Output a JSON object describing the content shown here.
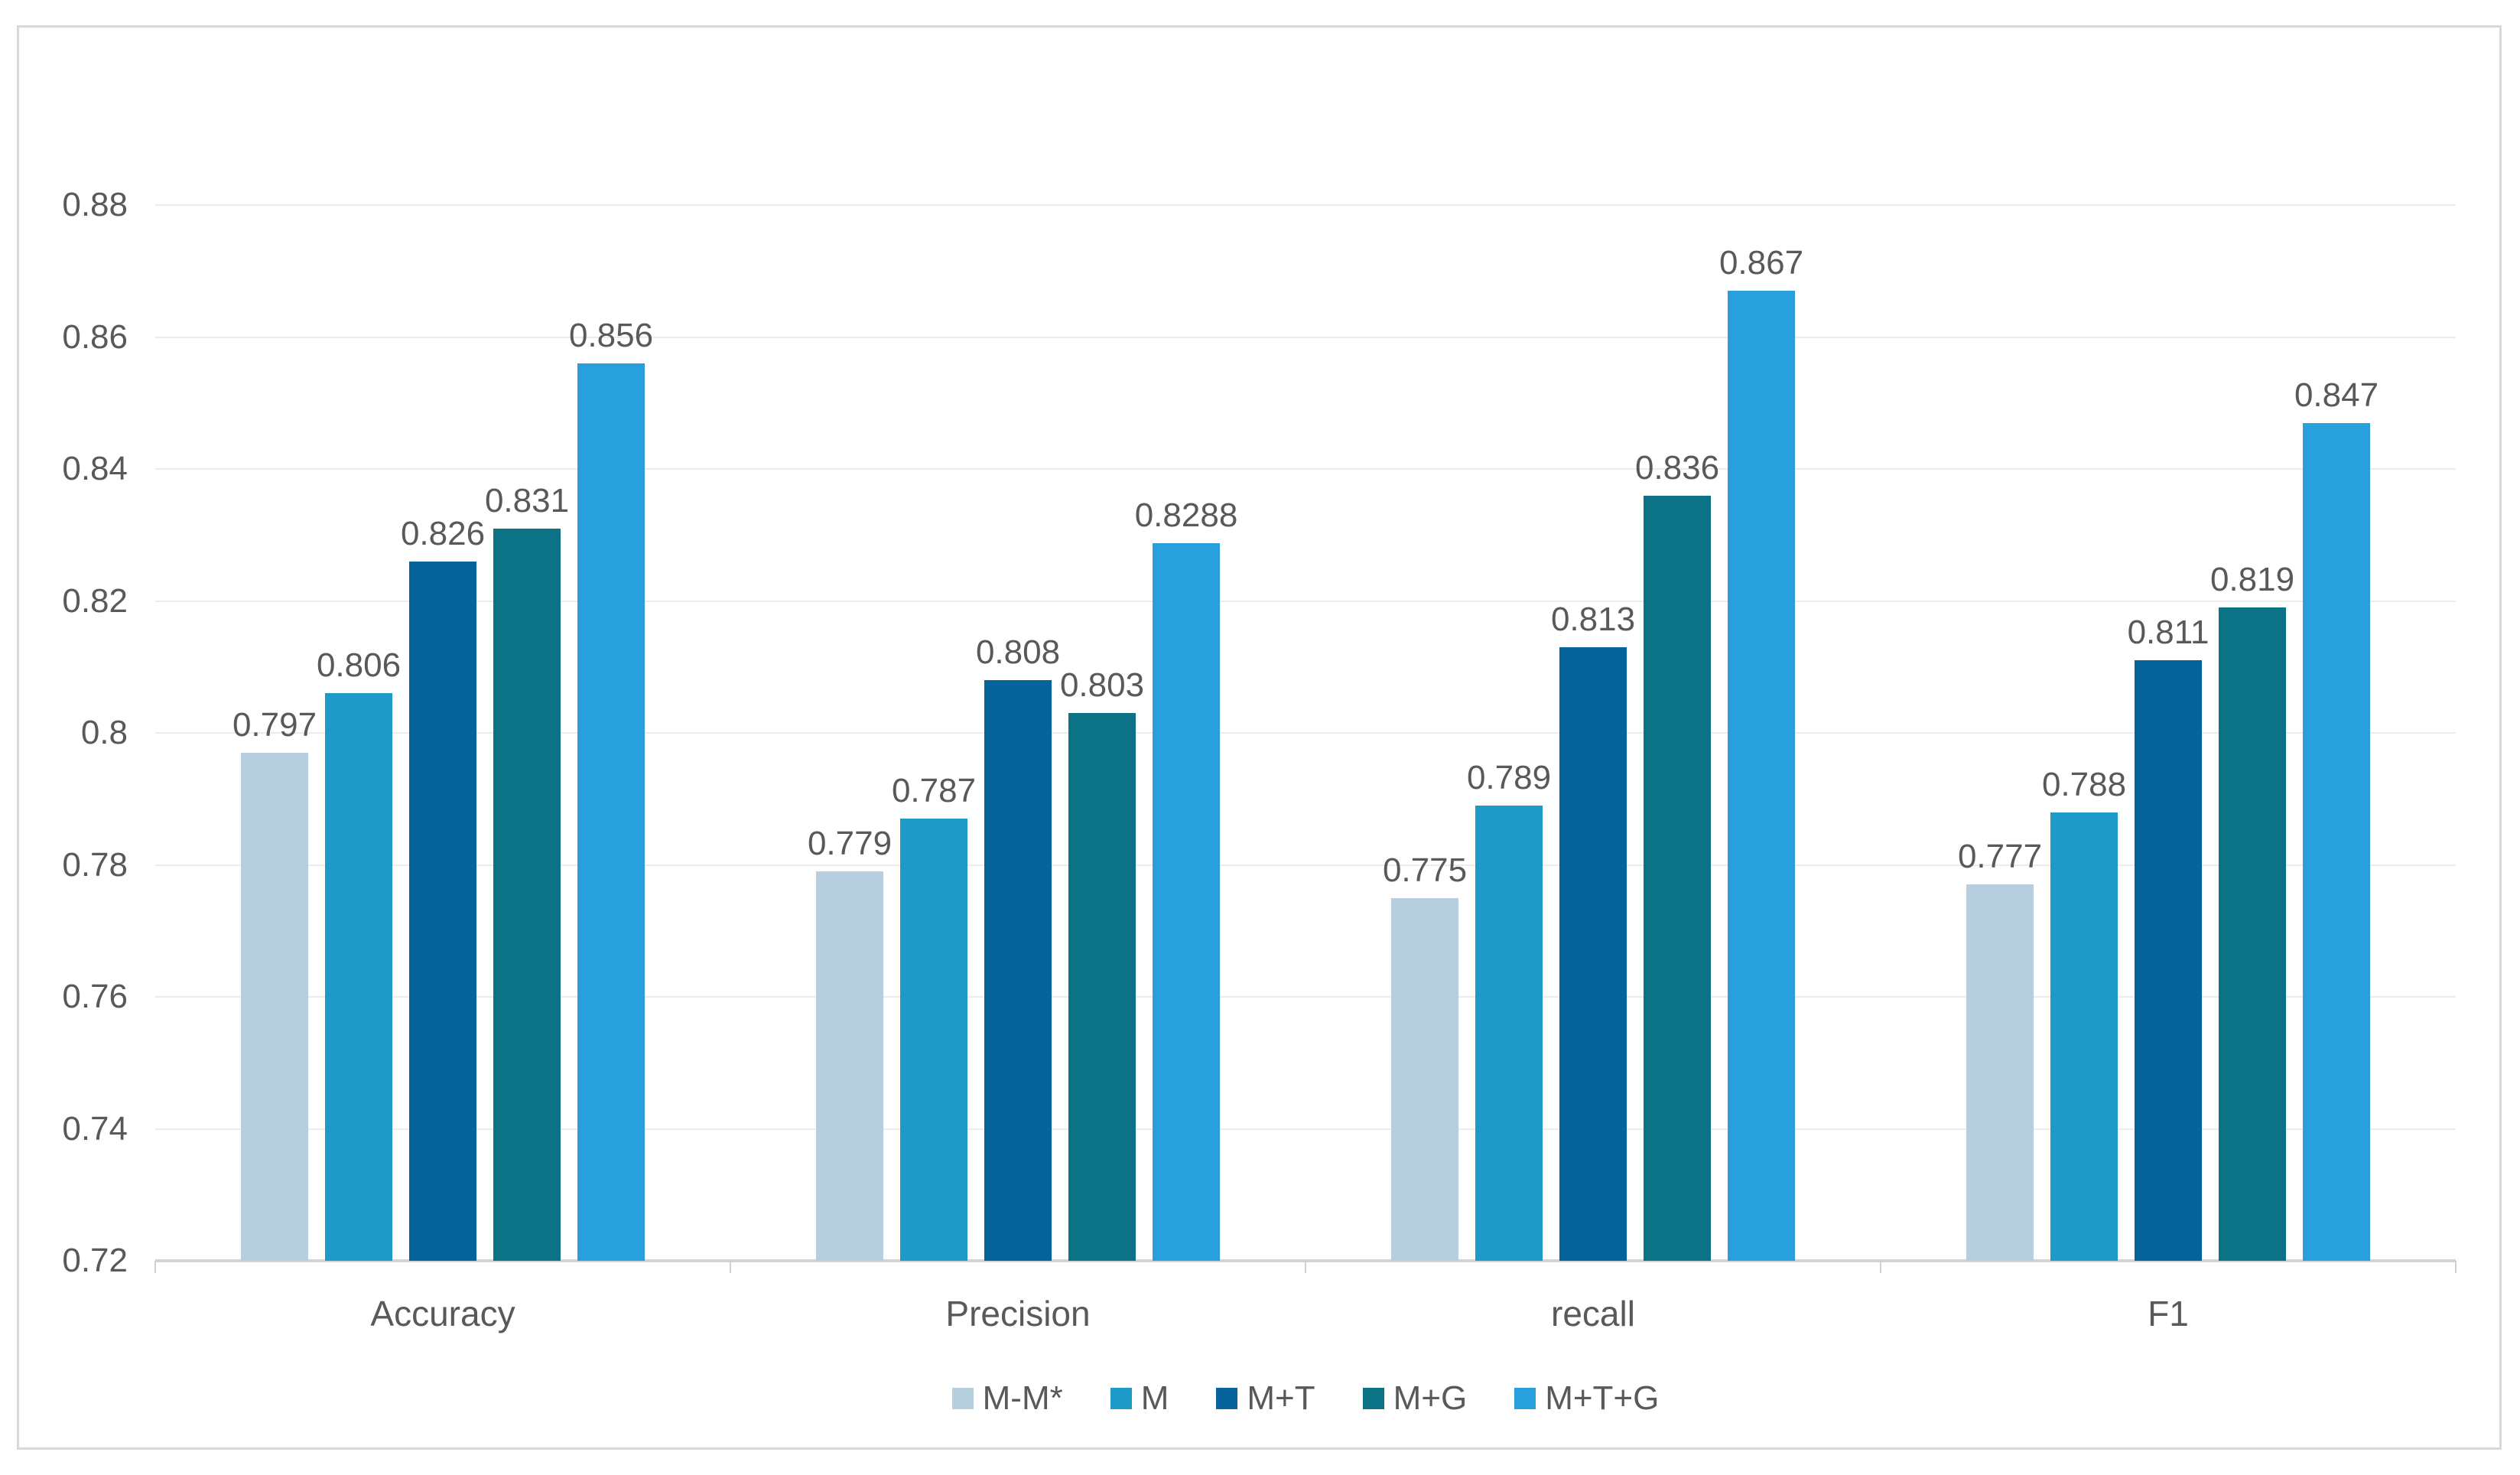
{
  "chart_data": {
    "type": "bar",
    "title": "",
    "xlabel": "",
    "ylabel": "",
    "categories": [
      "Accuracy",
      "Precision",
      "recall",
      "F1"
    ],
    "series": [
      {
        "name": "M-M*",
        "color": "#b6cede",
        "values": [
          0.797,
          0.779,
          0.775,
          0.777
        ],
        "labels": [
          "0.797",
          "0.779",
          "0.775",
          "0.777"
        ]
      },
      {
        "name": "M",
        "color": "#1e9ac9",
        "values": [
          0.806,
          0.787,
          0.789,
          0.788
        ],
        "labels": [
          "0.806",
          "0.787",
          "0.789",
          "0.788"
        ]
      },
      {
        "name": "M+T",
        "color": "#06639c",
        "values": [
          0.826,
          0.808,
          0.813,
          0.811
        ],
        "labels": [
          "0.826",
          "0.808",
          "0.813",
          "0.811"
        ]
      },
      {
        "name": "M+G",
        "color": "#0c7286",
        "values": [
          0.831,
          0.803,
          0.836,
          0.819
        ],
        "labels": [
          "0.831",
          "0.803",
          "0.836",
          "0.819"
        ]
      },
      {
        "name": "M+T+G",
        "color": "#27a0dc",
        "values": [
          0.856,
          0.8288,
          0.867,
          0.847
        ],
        "labels": [
          "0.856",
          "0.8288",
          "0.867",
          "0.847"
        ]
      }
    ],
    "ylim": [
      0.72,
      0.88
    ],
    "ytick_values": [
      0.88,
      0.86,
      0.84,
      0.82,
      0.8,
      0.78,
      0.76,
      0.74,
      0.72
    ],
    "ytick_labels": [
      "0.88",
      "0.86",
      "0.84",
      "0.82",
      "0.8",
      "0.78",
      "0.76",
      "0.74",
      "0.72"
    ],
    "grid": true,
    "legend_position": "bottom"
  },
  "theme": {
    "text_color": "#595959",
    "gridline_color": "#ececec",
    "axis_line_color": "#d2d2d2",
    "border_color": "#d9d9d9",
    "background": "#ffffff"
  }
}
